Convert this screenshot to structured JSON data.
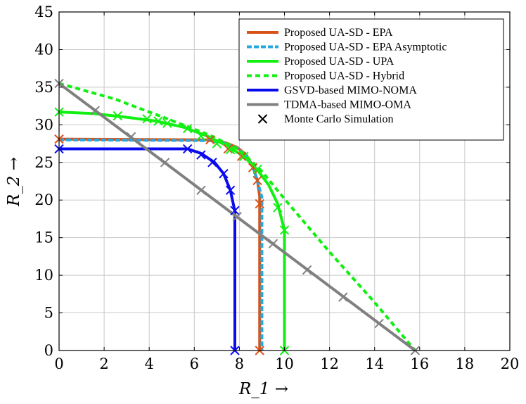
{
  "chart_data": {
    "type": "line",
    "title": "",
    "xlabel": "R_1 →",
    "ylabel": "R_2 →",
    "xlim": [
      0,
      20
    ],
    "ylim": [
      0,
      45
    ],
    "xticks": [
      "0",
      "2",
      "4",
      "6",
      "8",
      "10",
      "12",
      "14",
      "16",
      "18",
      "20"
    ],
    "yticks": [
      "0",
      "5",
      "10",
      "15",
      "20",
      "25",
      "30",
      "35",
      "40",
      "45"
    ],
    "grid": true,
    "legend_position": "top-right",
    "series": [
      {
        "name": "Proposed UA-SD - EPA",
        "color": "#d95319",
        "dash": "solid",
        "points": [
          [
            0,
            28.1
          ],
          [
            6.7,
            28.0
          ],
          [
            7.4,
            27.6
          ],
          [
            7.9,
            27.0
          ],
          [
            8.3,
            26.0
          ],
          [
            8.6,
            24.5
          ],
          [
            8.8,
            22.6
          ],
          [
            8.9,
            20.5
          ],
          [
            8.9,
            0
          ]
        ],
        "markers": [
          [
            0,
            28.1
          ],
          [
            6.7,
            28.0
          ],
          [
            7.5,
            26.8
          ],
          [
            8.1,
            25.8
          ],
          [
            8.6,
            24.3
          ],
          [
            8.8,
            22.6
          ],
          [
            8.9,
            19.5
          ],
          [
            8.9,
            0
          ]
        ]
      },
      {
        "name": "Proposed UA-SD - EPA Asymptotic",
        "color": "#29a8e0",
        "dash": "dashed",
        "points": [
          [
            0,
            28.0
          ],
          [
            6.7,
            27.9
          ],
          [
            7.4,
            27.5
          ],
          [
            7.9,
            26.9
          ],
          [
            8.3,
            25.9
          ],
          [
            8.6,
            24.4
          ],
          [
            8.8,
            22.5
          ],
          [
            9.0,
            20.4
          ],
          [
            9.0,
            0
          ]
        ],
        "markers": []
      },
      {
        "name": "Proposed UA-SD - UPA",
        "color": "#12ef12",
        "dash": "solid",
        "points": [
          [
            0,
            31.7
          ],
          [
            1.5,
            31.5
          ],
          [
            3.0,
            31.0
          ],
          [
            4.3,
            30.5
          ],
          [
            5.5,
            29.7
          ],
          [
            6.5,
            28.6
          ],
          [
            7.4,
            27.3
          ],
          [
            8.2,
            25.8
          ],
          [
            8.8,
            24.0
          ],
          [
            9.3,
            22.0
          ],
          [
            9.7,
            19.5
          ],
          [
            10.0,
            16.0
          ],
          [
            10.0,
            0
          ]
        ],
        "markers": [
          [
            0,
            31.7
          ],
          [
            2.6,
            31.2
          ],
          [
            3.9,
            30.8
          ],
          [
            4.4,
            30.5
          ],
          [
            4.8,
            30.2
          ],
          [
            5.7,
            29.5
          ],
          [
            6.3,
            28.5
          ],
          [
            7.0,
            27.5
          ],
          [
            7.6,
            26.7
          ],
          [
            8.2,
            25.8
          ],
          [
            8.8,
            24.1
          ],
          [
            9.7,
            19.0
          ],
          [
            10.0,
            16.0
          ],
          [
            10.0,
            0
          ]
        ]
      },
      {
        "name": "Proposed UA-SD - Hybrid",
        "color": "#12ef12",
        "dash": "dotted",
        "points": [
          [
            0,
            35.5
          ],
          [
            2.5,
            33.4
          ],
          [
            4.8,
            30.8
          ],
          [
            6.7,
            28.6
          ],
          [
            8.0,
            26.7
          ],
          [
            9.0,
            23.8
          ],
          [
            10.1,
            19.8
          ],
          [
            12.0,
            13.1
          ],
          [
            14.0,
            6.4
          ],
          [
            15.8,
            0
          ]
        ],
        "markers": []
      },
      {
        "name": "GSVD-based MIMO-NOMA",
        "color": "#0a0aef",
        "dash": "solid",
        "points": [
          [
            0,
            26.8
          ],
          [
            5.7,
            26.8
          ],
          [
            6.3,
            26.2
          ],
          [
            6.9,
            25.0
          ],
          [
            7.3,
            23.5
          ],
          [
            7.6,
            21.3
          ],
          [
            7.8,
            18.5
          ],
          [
            7.8,
            0
          ]
        ],
        "markers": [
          [
            0,
            26.8
          ],
          [
            5.7,
            26.8
          ],
          [
            6.3,
            26.0
          ],
          [
            6.8,
            25.0
          ],
          [
            7.3,
            23.5
          ],
          [
            7.6,
            21.3
          ],
          [
            7.8,
            18.6
          ],
          [
            7.8,
            0
          ]
        ]
      },
      {
        "name": "TDMA-based MIMO-OMA",
        "color": "#808080",
        "dash": "solid",
        "points": [
          [
            0,
            35.5
          ],
          [
            15.8,
            0
          ]
        ],
        "markers": [
          [
            0,
            35.5
          ],
          [
            1.6,
            31.9
          ],
          [
            3.2,
            28.4
          ],
          [
            4.7,
            25.0
          ],
          [
            6.3,
            21.3
          ],
          [
            7.9,
            17.8
          ],
          [
            9.5,
            14.2
          ],
          [
            11.0,
            10.7
          ],
          [
            12.6,
            7.1
          ],
          [
            14.2,
            3.6
          ],
          [
            15.8,
            0
          ]
        ]
      }
    ],
    "legend_marker": {
      "name": "Monte Carlo Simulation",
      "color": "#000000",
      "symbol": "×"
    }
  }
}
